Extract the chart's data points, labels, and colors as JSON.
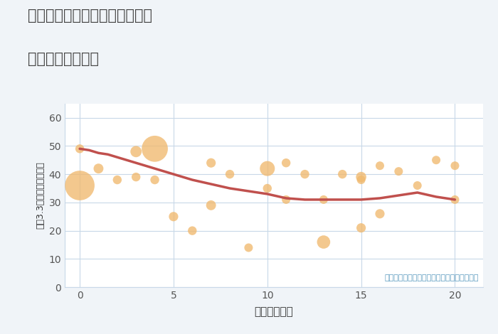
{
  "title_line1": "愛知県名古屋市港区本星崎町の",
  "title_line2": "駅距離別土地価格",
  "xlabel": "駅距離（分）",
  "ylabel": "坪（3.3㎡）単価（万円）",
  "annotation": "円の大きさは、取引のあった物件面積を示す",
  "bg_color": "#f0f4f8",
  "plot_bg_color": "#ffffff",
  "bubble_color": "#f0b96e",
  "bubble_alpha": 0.78,
  "line_color": "#c0504d",
  "line_width": 2.5,
  "grid_color": "#c8d8e8",
  "xlim": [
    -0.8,
    21.5
  ],
  "ylim": [
    0,
    65
  ],
  "xticks": [
    0,
    5,
    10,
    15,
    20
  ],
  "yticks": [
    0,
    10,
    20,
    30,
    40,
    50,
    60
  ],
  "scatter_x": [
    0,
    0,
    1,
    2,
    3,
    3,
    4,
    4,
    5,
    6,
    7,
    7,
    8,
    9,
    10,
    10,
    11,
    11,
    12,
    13,
    13,
    14,
    15,
    15,
    15,
    16,
    16,
    17,
    18,
    19,
    20,
    20
  ],
  "scatter_y": [
    36,
    49,
    42,
    38,
    48,
    39,
    49,
    38,
    25,
    20,
    44,
    29,
    40,
    14,
    42,
    35,
    44,
    31,
    40,
    16,
    31,
    40,
    39,
    38,
    21,
    43,
    26,
    41,
    36,
    45,
    43,
    31
  ],
  "scatter_size": [
    900,
    80,
    100,
    80,
    130,
    80,
    700,
    80,
    90,
    80,
    90,
    100,
    80,
    75,
    230,
    80,
    80,
    75,
    80,
    180,
    75,
    80,
    110,
    75,
    90,
    75,
    90,
    75,
    75,
    75,
    75,
    75
  ],
  "trend_x": [
    0,
    0.5,
    1,
    1.5,
    2,
    2.5,
    3,
    3.5,
    4,
    5,
    6,
    7,
    8,
    9,
    10,
    11,
    12,
    13,
    14,
    15,
    16,
    17,
    18,
    19,
    20
  ],
  "trend_y": [
    49,
    48.5,
    47.5,
    47,
    46,
    45,
    44,
    43,
    42,
    40,
    38,
    36.5,
    35,
    34,
    33,
    31.5,
    31,
    31,
    31,
    31,
    31.5,
    32.5,
    33.5,
    32,
    31
  ]
}
